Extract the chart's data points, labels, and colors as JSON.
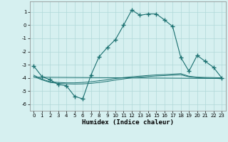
{
  "xlabel": "Humidex (Indice chaleur)",
  "xlim": [
    -0.5,
    23.5
  ],
  "ylim": [
    -6.5,
    1.8
  ],
  "yticks": [
    1,
    0,
    -1,
    -2,
    -3,
    -4,
    -5,
    -6
  ],
  "xticks": [
    0,
    1,
    2,
    3,
    4,
    5,
    6,
    7,
    8,
    9,
    10,
    11,
    12,
    13,
    14,
    15,
    16,
    17,
    18,
    19,
    20,
    21,
    22,
    23
  ],
  "background_color": "#d6f0f0",
  "grid_color": "#b0d8d8",
  "line_color": "#1a7070",
  "lines": [
    {
      "x": [
        0,
        1,
        2,
        3,
        4,
        5,
        6,
        7,
        8,
        9,
        10,
        11,
        12,
        13,
        14,
        15,
        16,
        17,
        18,
        19,
        20,
        21,
        22,
        23
      ],
      "y": [
        -3.1,
        -3.9,
        -4.15,
        -4.5,
        -4.6,
        -5.4,
        -5.6,
        -3.8,
        -2.4,
        -1.7,
        -1.1,
        0.0,
        1.15,
        0.75,
        0.85,
        0.85,
        0.4,
        -0.1,
        -2.45,
        -3.5,
        -2.3,
        -2.75,
        -3.2,
        -4.0
      ],
      "marker": true
    },
    {
      "x": [
        0,
        1,
        2,
        3,
        4,
        5,
        6,
        7,
        8,
        9,
        10,
        11,
        12,
        13,
        14,
        15,
        16,
        17,
        18,
        19,
        20,
        21,
        22,
        23
      ],
      "y": [
        -3.8,
        -4.1,
        -4.3,
        -4.35,
        -4.38,
        -4.38,
        -4.35,
        -4.3,
        -4.22,
        -4.15,
        -4.05,
        -3.98,
        -3.92,
        -3.87,
        -3.82,
        -3.78,
        -3.75,
        -3.72,
        -3.68,
        -3.88,
        -3.95,
        -3.97,
        -3.98,
        -4.0
      ],
      "marker": false
    },
    {
      "x": [
        0,
        1,
        2,
        3,
        4,
        5,
        6,
        7,
        8,
        9,
        10,
        11,
        12,
        13,
        14,
        15,
        16,
        17,
        18,
        19,
        20,
        21,
        22,
        23
      ],
      "y": [
        -3.9,
        -4.15,
        -4.35,
        -4.42,
        -4.46,
        -4.47,
        -4.46,
        -4.42,
        -4.35,
        -4.27,
        -4.17,
        -4.08,
        -4.0,
        -3.95,
        -3.9,
        -3.86,
        -3.83,
        -3.8,
        -3.77,
        -3.92,
        -3.98,
        -4.02,
        -4.04,
        -4.06
      ],
      "marker": false
    },
    {
      "x": [
        0,
        23
      ],
      "y": [
        -3.95,
        -4.05
      ],
      "marker": false
    }
  ]
}
